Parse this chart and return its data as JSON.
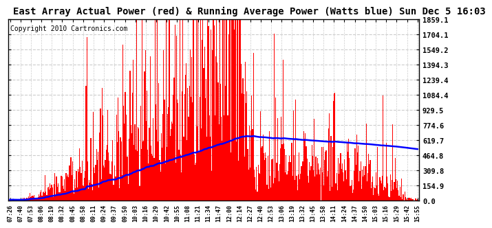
{
  "title": "East Array Actual Power (red) & Running Average Power (Watts blue) Sun Dec 5 16:03",
  "copyright": "Copyright 2010 Cartronics.com",
  "yticks": [
    0.0,
    154.9,
    309.8,
    464.8,
    619.7,
    774.6,
    929.5,
    1084.4,
    1239.4,
    1394.3,
    1549.2,
    1704.1,
    1859.1
  ],
  "ymax": 1859.1,
  "xtick_labels": [
    "07:26",
    "07:40",
    "07:53",
    "08:06",
    "08:19",
    "08:32",
    "08:45",
    "08:58",
    "09:11",
    "09:24",
    "09:37",
    "09:50",
    "10:03",
    "10:16",
    "10:29",
    "10:42",
    "10:55",
    "11:08",
    "11:21",
    "11:34",
    "11:47",
    "12:00",
    "12:14",
    "12:27",
    "12:40",
    "12:53",
    "13:06",
    "13:19",
    "13:32",
    "13:45",
    "13:58",
    "14:11",
    "14:24",
    "14:37",
    "14:50",
    "15:03",
    "15:16",
    "15:29",
    "15:42",
    "15:55"
  ],
  "fig_bg": "#ffffff",
  "plot_bg": "#ffffff",
  "red_color": "#ff0000",
  "blue_color": "#0000ff",
  "grid_color": "#cccccc",
  "title_fontsize": 10,
  "copyright_fontsize": 7
}
